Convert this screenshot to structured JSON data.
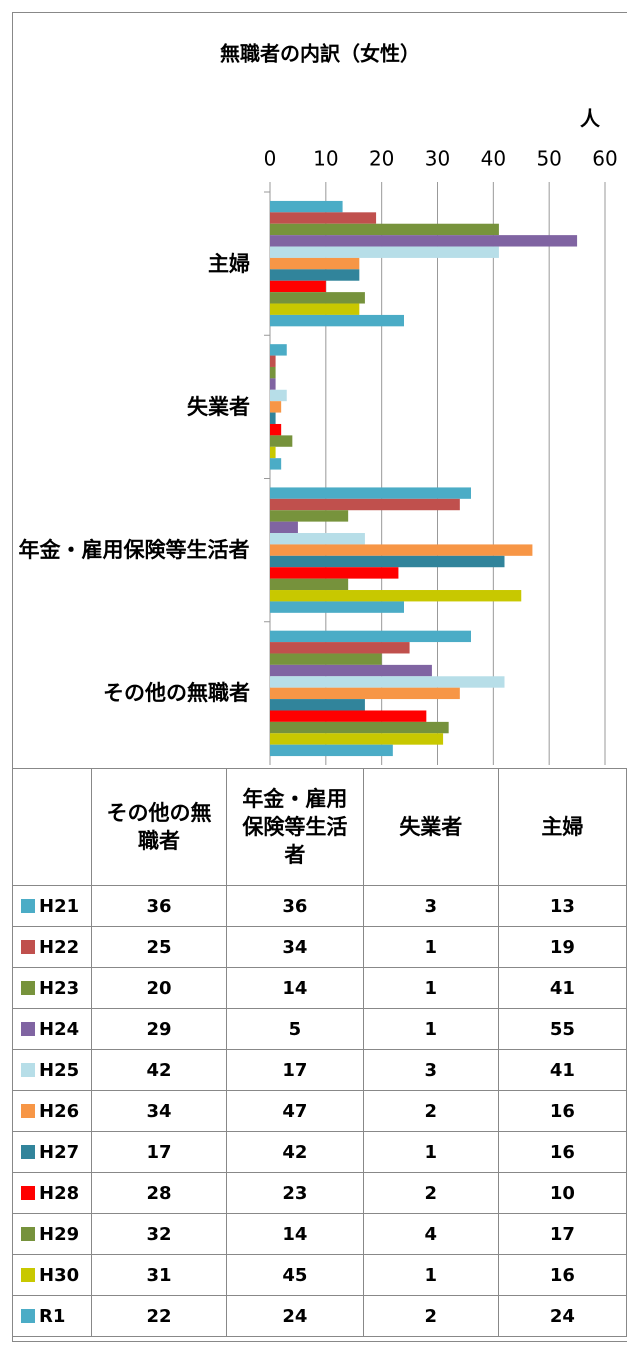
{
  "chart_data": {
    "type": "bar",
    "orientation": "horizontal",
    "title": "無職者の内訳（女性）",
    "x_label": "人",
    "categories": [
      "その他の無職者",
      "年金・雇用保険等生活者",
      "失業者",
      "主婦"
    ],
    "xlim": [
      0,
      60
    ],
    "xticks": [
      0,
      10,
      20,
      30,
      40,
      50,
      60
    ],
    "grid": true,
    "series": [
      {
        "name": "H21",
        "color": "#4bacc6",
        "values": [
          36,
          36,
          3,
          13
        ]
      },
      {
        "name": "H22",
        "color": "#c0504d",
        "values": [
          25,
          34,
          1,
          19
        ]
      },
      {
        "name": "H23",
        "color": "#77933c",
        "values": [
          20,
          14,
          1,
          41
        ]
      },
      {
        "name": "H24",
        "color": "#8064a2",
        "values": [
          29,
          5,
          1,
          55
        ]
      },
      {
        "name": "H25",
        "color": "#b7dee8",
        "values": [
          42,
          17,
          3,
          41
        ]
      },
      {
        "name": "H26",
        "color": "#f79646",
        "values": [
          34,
          47,
          2,
          16
        ]
      },
      {
        "name": "H27",
        "color": "#31849b",
        "values": [
          17,
          42,
          1,
          16
        ]
      },
      {
        "name": "H28",
        "color": "#ff0000",
        "values": [
          28,
          23,
          2,
          10
        ]
      },
      {
        "name": "H29",
        "color": "#76923c",
        "values": [
          32,
          14,
          4,
          17
        ]
      },
      {
        "name": "H30",
        "color": "#c8c800",
        "values": [
          31,
          45,
          1,
          16
        ]
      },
      {
        "name": "R1",
        "color": "#4bacc6",
        "values": [
          22,
          24,
          2,
          24
        ]
      }
    ]
  }
}
